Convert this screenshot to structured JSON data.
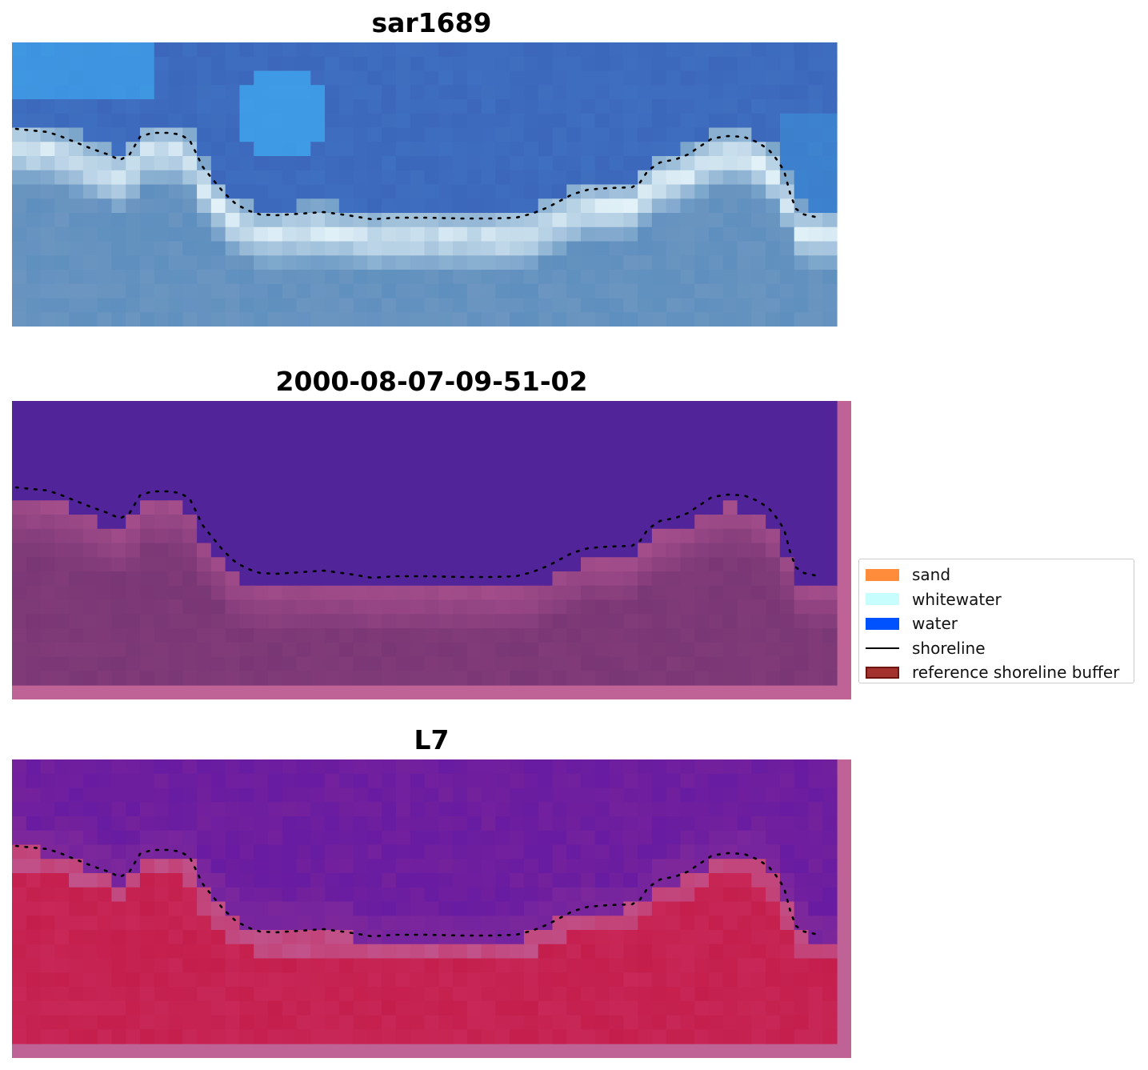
{
  "panels": [
    {
      "title": "sar1689",
      "kind": "rgb"
    },
    {
      "title": "2000-08-07-09-51-02",
      "kind": "classified"
    },
    {
      "title": "L7",
      "kind": "index"
    }
  ],
  "legend": {
    "items": [
      {
        "label": "sand",
        "color": "#ff8c3b",
        "shape": "patch"
      },
      {
        "label": "whitewater",
        "color": "#c8fdfd",
        "shape": "patch"
      },
      {
        "label": "water",
        "color": "#0052ff",
        "shape": "patch"
      },
      {
        "label": "shoreline",
        "color": "#000000",
        "shape": "line"
      },
      {
        "label": "reference shoreline buffer",
        "color": "#a3312e",
        "shape": "patch"
      }
    ]
  },
  "colors": {
    "rgb_water": "#3f6fc0",
    "rgb_water_bright": "#3fa6ef",
    "rgb_land": "#5e8fbe",
    "rgb_foam": "#eaf7fb",
    "class_water": "#522499",
    "class_land": "#7a3775",
    "class_land_light": "#a9508e",
    "buffer": "#bf6296",
    "index_water": "#74219c",
    "index_land": "#c41e4c",
    "index_edge": "#c1528a",
    "shoreline": "#000000"
  }
}
